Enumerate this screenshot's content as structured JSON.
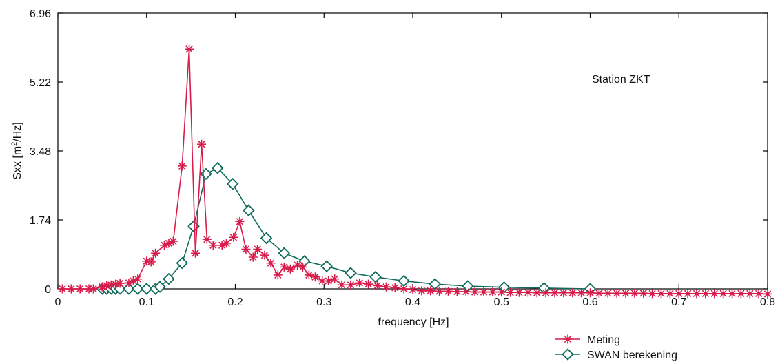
{
  "chart_data": {
    "type": "line",
    "title": "",
    "annotation": "Station ZKT",
    "xlabel": "frequency [Hz]",
    "ylabel_parts": {
      "main": "Sxx [m",
      "sup": "2",
      "tail": "/Hz]"
    },
    "xlim": [
      0,
      0.8
    ],
    "ylim": [
      0,
      6.96
    ],
    "xticks": [
      "0",
      "0.1",
      "0.2",
      "0.3",
      "0.4",
      "0.5",
      "0.6",
      "0.7",
      "0.8"
    ],
    "yticks": [
      "0",
      "1.74",
      "3.48",
      "5.22",
      "6.96"
    ],
    "grid": false,
    "legend_position": "bottom-right-outside",
    "series": [
      {
        "name": "Meting",
        "color": "#d81b4a",
        "marker": "asterisk",
        "x": [
          0.005,
          0.015,
          0.025,
          0.035,
          0.04,
          0.05,
          0.055,
          0.06,
          0.065,
          0.07,
          0.08,
          0.085,
          0.09,
          0.1,
          0.105,
          0.11,
          0.12,
          0.125,
          0.13,
          0.14,
          0.148,
          0.155,
          0.162,
          0.168,
          0.175,
          0.185,
          0.19,
          0.198,
          0.205,
          0.212,
          0.22,
          0.225,
          0.233,
          0.24,
          0.248,
          0.255,
          0.262,
          0.27,
          0.276,
          0.283,
          0.29,
          0.298,
          0.305,
          0.312,
          0.32,
          0.33,
          0.34,
          0.35,
          0.36,
          0.37,
          0.38,
          0.39,
          0.4,
          0.41,
          0.42,
          0.43,
          0.44,
          0.45,
          0.46,
          0.47,
          0.48,
          0.49,
          0.5,
          0.51,
          0.52,
          0.53,
          0.54,
          0.55,
          0.56,
          0.57,
          0.58,
          0.59,
          0.6,
          0.61,
          0.62,
          0.63,
          0.64,
          0.65,
          0.66,
          0.67,
          0.68,
          0.69,
          0.7,
          0.71,
          0.72,
          0.73,
          0.74,
          0.75,
          0.76,
          0.77,
          0.78,
          0.79,
          0.8
        ],
        "y": [
          0.0,
          0.0,
          0.0,
          0.0,
          0.0,
          0.05,
          0.08,
          0.1,
          0.12,
          0.14,
          0.15,
          0.2,
          0.25,
          0.7,
          0.68,
          0.9,
          1.1,
          1.15,
          1.2,
          3.1,
          6.05,
          0.9,
          3.65,
          1.25,
          1.1,
          1.1,
          1.15,
          1.3,
          1.7,
          1.0,
          0.8,
          1.0,
          0.85,
          0.65,
          0.35,
          0.55,
          0.5,
          0.6,
          0.55,
          0.35,
          0.3,
          0.2,
          0.2,
          0.25,
          0.1,
          0.1,
          0.15,
          0.12,
          0.08,
          0.05,
          0.03,
          0.0,
          -0.02,
          -0.05,
          -0.05,
          -0.06,
          -0.06,
          -0.07,
          -0.07,
          -0.08,
          -0.08,
          -0.08,
          -0.08,
          -0.09,
          -0.09,
          -0.09,
          -0.1,
          -0.1,
          -0.1,
          -0.1,
          -0.1,
          -0.1,
          -0.1,
          -0.11,
          -0.11,
          -0.11,
          -0.11,
          -0.11,
          -0.11,
          -0.12,
          -0.12,
          -0.12,
          -0.12,
          -0.12,
          -0.12,
          -0.12,
          -0.12,
          -0.12,
          -0.12,
          -0.12,
          -0.12,
          -0.12,
          -0.13
        ]
      },
      {
        "name": "SWAN berekening",
        "color": "#0e6b5b",
        "marker": "diamond",
        "x": [
          0.05,
          0.055,
          0.06,
          0.065,
          0.07,
          0.08,
          0.09,
          0.1,
          0.11,
          0.115,
          0.125,
          0.14,
          0.153,
          0.167,
          0.18,
          0.197,
          0.215,
          0.235,
          0.255,
          0.278,
          0.303,
          0.33,
          0.358,
          0.39,
          0.425,
          0.462,
          0.503,
          0.548,
          0.6
        ],
        "y": [
          0.0,
          0.0,
          0.0,
          0.0,
          0.0,
          0.0,
          0.0,
          0.0,
          0.0,
          0.05,
          0.25,
          0.65,
          1.58,
          2.9,
          3.05,
          2.65,
          1.98,
          1.28,
          0.9,
          0.7,
          0.57,
          0.4,
          0.3,
          0.2,
          0.12,
          0.07,
          0.04,
          0.02,
          0.0
        ]
      }
    ]
  }
}
